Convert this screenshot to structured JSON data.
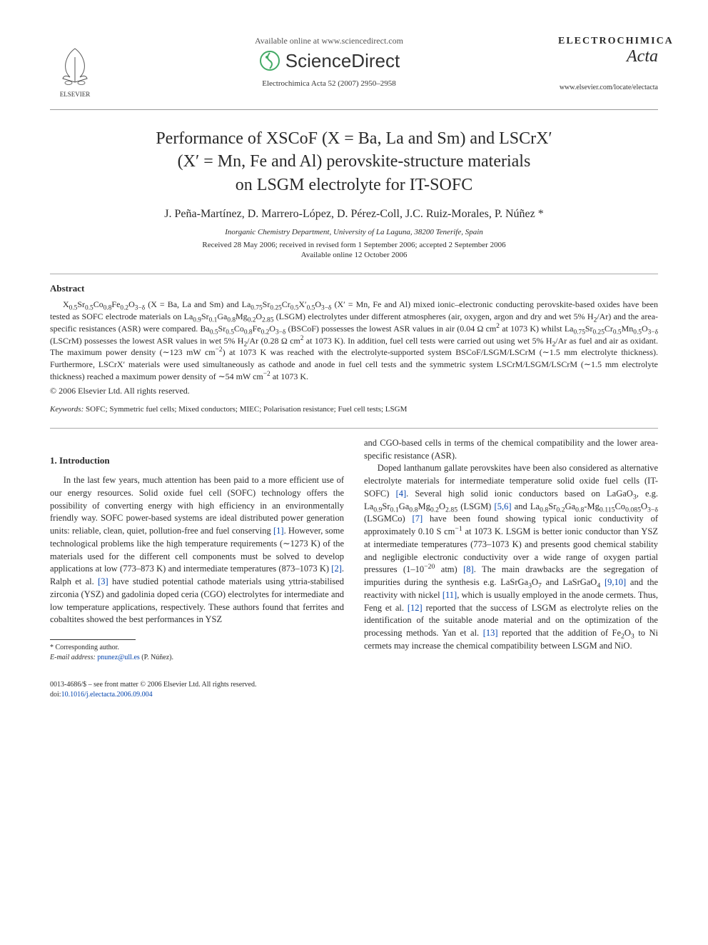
{
  "header": {
    "available_online": "Available online at www.sciencedirect.com",
    "sciencedirect": "ScienceDirect",
    "journal_ref": "Electrochimica Acta 52 (2007) 2950–2958",
    "journal_name_upper": "ELECTROCHIMICA",
    "journal_name_lower": "Acta",
    "journal_url": "www.elsevier.com/locate/electacta",
    "elsevier_label": "ELSEVIER"
  },
  "title": {
    "line1": "Performance of XSCoF (X = Ba, La and Sm) and LSCrX′",
    "line2": "(X′ = Mn, Fe and Al) perovskite-structure materials",
    "line3": "on LSGM electrolyte for IT-SOFC"
  },
  "authors": "J. Peña-Martínez, D. Marrero-López, D. Pérez-Coll, J.C. Ruiz-Morales, P. Núñez",
  "affiliation": "Inorganic Chemistry Department, University of La Laguna, 38200 Tenerife, Spain",
  "dates": {
    "received": "Received 28 May 2006; received in revised form 1 September 2006; accepted 2 September 2006",
    "available": "Available online 12 October 2006"
  },
  "abstract": {
    "heading": "Abstract",
    "body_html": "X<sub>0.5</sub>Sr<sub>0.5</sub>Co<sub>0.8</sub>Fe<sub>0.2</sub>O<sub>3−δ</sub> (X = Ba, La and Sm) and La<sub>0.75</sub>Sr<sub>0.25</sub>Cr<sub>0.5</sub>X′<sub>0.5</sub>O<sub>3−δ</sub> (X′ = Mn, Fe and Al) mixed ionic–electronic conducting perovskite-based oxides have been tested as SOFC electrode materials on La<sub>0.9</sub>Sr<sub>0.1</sub>Ga<sub>0.8</sub>Mg<sub>0.2</sub>O<sub>2.85</sub> (LSGM) electrolytes under different atmospheres (air, oxygen, argon and dry and wet 5% H<sub>2</sub>/Ar) and the area-specific resistances (ASR) were compared. Ba<sub>0.5</sub>Sr<sub>0.5</sub>Co<sub>0.8</sub>Fe<sub>0.2</sub>O<sub>3−δ</sub> (BSCoF) possesses the lowest ASR values in air (0.04 Ω cm<sup>2</sup> at 1073 K) whilst La<sub>0.75</sub>Sr<sub>0.25</sub>Cr<sub>0.5</sub>Mn<sub>0.5</sub>O<sub>3−δ</sub> (LSCrM) possesses the lowest ASR values in wet 5% H<sub>2</sub>/Ar (0.28 Ω cm<sup>2</sup> at 1073 K). In addition, fuel cell tests were carried out using wet 5% H<sub>2</sub>/Ar as fuel and air as oxidant. The maximum power density (∼123 mW cm<sup>−2</sup>) at 1073 K was reached with the electrolyte-supported system BSCoF/LSGM/LSCrM (∼1.5 mm electrolyte thickness). Furthermore, LSCrX′ materials were used simultaneously as cathode and anode in fuel cell tests and the symmetric system LSCrM/LSGM/LSCrM (∼1.5 mm electrolyte thickness) reached a maximum power density of ∼54 mW cm<sup>−2</sup> at 1073 K.",
    "copyright": "© 2006 Elsevier Ltd. All rights reserved.",
    "keywords_label": "Keywords:",
    "keywords": " SOFC; Symmetric fuel cells; Mixed conductors; MIEC; Polarisation resistance; Fuel cell tests; LSGM"
  },
  "intro": {
    "heading": "1. Introduction",
    "col1_p1_html": "In the last few years, much attention has been paid to a more efficient use of our energy resources. Solid oxide fuel cell (SOFC) technology offers the possibility of converting energy with high efficiency in an environmentally friendly way. SOFC power-based systems are ideal distributed power generation units: reliable, clean, quiet, pollution-free and fuel conserving <span class=\"ref-link\">[1]</span>. However, some technological problems like the high temperature requirements (∼1273 K) of the materials used for the different cell components must be solved to develop applications at low (773–873 K) and intermediate temperatures (873–1073 K) <span class=\"ref-link\">[2]</span>. Ralph et al. <span class=\"ref-link\">[3]</span> have studied potential cathode materials using yttria-stabilised zirconia (YSZ) and gadolinia doped ceria (CGO) electrolytes for intermediate and low temperature applications, respectively. These authors found that ferrites and cobaltites showed the best performances in YSZ",
    "col2_p1_html": "and CGO-based cells in terms of the chemical compatibility and the lower area-specific resistance (ASR).",
    "col2_p2_html": "Doped lanthanum gallate perovskites have been also considered as alternative electrolyte materials for intermediate temperature solid oxide fuel cells (IT-SOFC) <span class=\"ref-link\">[4]</span>. Several high solid ionic conductors based on LaGaO<sub>3</sub>, e.g. La<sub>0.9</sub>Sr<sub>0.1</sub>Ga<sub>0.8</sub>Mg<sub>0.2</sub>O<sub>2.85</sub> (LSGM) <span class=\"ref-link\">[5,6]</span> and La<sub>0.8</sub>Sr<sub>0.2</sub>Ga<sub>0.8</sub>-Mg<sub>0.115</sub>Co<sub>0.085</sub>O<sub>3−δ</sub> (LSGMCo) <span class=\"ref-link\">[7]</span> have been found showing typical ionic conductivity of approximately 0.10 S cm<sup>−1</sup> at 1073 K. LSGM is better ionic conductor than YSZ at intermediate temperatures (773–1073 K) and presents good chemical stability and negligible electronic conductivity over a wide range of oxygen partial pressures (1–10<sup>−20</sup> atm) <span class=\"ref-link\">[8]</span>. The main drawbacks are the segregation of impurities during the synthesis e.g. LaSrGa<sub>3</sub>O<sub>7</sub> and LaSrGaO<sub>4</sub> <span class=\"ref-link\">[9,10]</span> and the reactivity with nickel <span class=\"ref-link\">[11]</span>, which is usually employed in the anode cermets. Thus, Feng et al. <span class=\"ref-link\">[12]</span> reported that the success of LSGM as electrolyte relies on the identification of the suitable anode material and on the optimization of the processing methods. Yan et al. <span class=\"ref-link\">[13]</span> reported that the addition of Fe<sub>2</sub>O<sub>3</sub> to Ni cermets may increase the chemical compatibility between LSGM and NiO."
  },
  "footnote": {
    "corresponding": "* Corresponding author.",
    "email_label": "E-mail address:",
    "email": "pnunez@ull.es",
    "email_name": "(P. Núñez)."
  },
  "footer": {
    "line1": "0013-4686/$ – see front matter © 2006 Elsevier Ltd. All rights reserved.",
    "doi": "doi:10.1016/j.electacta.2006.09.004"
  },
  "colors": {
    "link": "#0645ad",
    "text": "#2a2a2a",
    "elsevier_orange": "#ff6600"
  }
}
